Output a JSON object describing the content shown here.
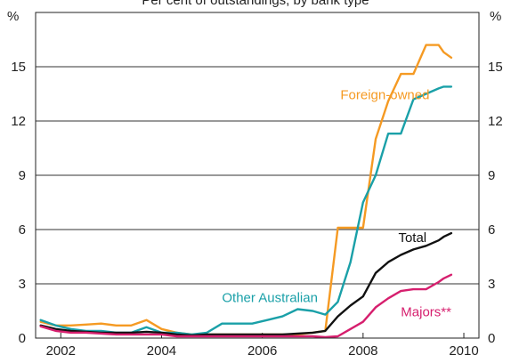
{
  "chart_data": {
    "type": "line",
    "title": "",
    "subtitle": "Per cent of outstandings, by bank type",
    "left_unit": "%",
    "right_unit": "%",
    "xlabel": "",
    "ylabel": "",
    "xlim": [
      2001.5,
      2010.3
    ],
    "ylim": [
      0,
      18
    ],
    "x_ticks": [
      2002,
      2004,
      2006,
      2008,
      2010
    ],
    "x_tick_labels": [
      "2002",
      "2004",
      "2006",
      "2008",
      "2010"
    ],
    "y_ticks": [
      0,
      3,
      6,
      9,
      12,
      15
    ],
    "y_tick_labels": [
      "0",
      "3",
      "6",
      "9",
      "12",
      "15"
    ],
    "grid": true,
    "series": [
      {
        "name": "Foreign-owned",
        "color": "#f59a23",
        "label_anchor": [
          2007.55,
          13.2
        ],
        "x": [
          2001.6,
          2001.9,
          2002.2,
          2002.5,
          2002.8,
          2003.1,
          2003.4,
          2003.7,
          2004.0,
          2004.3,
          2004.6,
          2004.9,
          2005.2,
          2005.5,
          2005.8,
          2006.1,
          2006.4,
          2006.7,
          2007.0,
          2007.25,
          2007.5,
          2007.75,
          2008.0,
          2008.25,
          2008.5,
          2008.75,
          2009.0,
          2009.25,
          2009.5,
          2009.6,
          2009.75
        ],
        "y": [
          0.9,
          0.7,
          0.7,
          0.75,
          0.8,
          0.7,
          0.7,
          1.0,
          0.5,
          0.3,
          0.2,
          0.2,
          0.2,
          0.2,
          0.2,
          0.2,
          0.2,
          0.2,
          0.3,
          0.4,
          6.1,
          6.1,
          6.1,
          11.0,
          13.1,
          14.6,
          14.6,
          16.2,
          16.2,
          15.8,
          15.5
        ]
      },
      {
        "name": "Other Australian",
        "color": "#1aa0a8",
        "label_anchor": [
          2005.2,
          2.0
        ],
        "x": [
          2001.6,
          2001.9,
          2002.2,
          2002.5,
          2002.8,
          2003.1,
          2003.4,
          2003.7,
          2004.0,
          2004.3,
          2004.6,
          2004.9,
          2005.2,
          2005.5,
          2005.8,
          2006.1,
          2006.4,
          2006.7,
          2007.0,
          2007.25,
          2007.5,
          2007.75,
          2008.0,
          2008.25,
          2008.5,
          2008.75,
          2009.0,
          2009.25,
          2009.5,
          2009.6,
          2009.75
        ],
        "y": [
          1.0,
          0.7,
          0.5,
          0.4,
          0.4,
          0.3,
          0.3,
          0.6,
          0.3,
          0.3,
          0.2,
          0.3,
          0.8,
          0.8,
          0.8,
          1.0,
          1.2,
          1.6,
          1.5,
          1.3,
          2.0,
          4.2,
          7.5,
          9.0,
          11.3,
          11.3,
          13.2,
          13.5,
          13.8,
          13.9,
          13.9
        ]
      },
      {
        "name": "Total",
        "color": "#111111",
        "label_anchor": [
          2008.7,
          5.3
        ],
        "x": [
          2001.6,
          2001.9,
          2002.2,
          2002.5,
          2002.8,
          2003.1,
          2003.4,
          2003.7,
          2004.0,
          2004.3,
          2004.6,
          2004.9,
          2005.2,
          2005.5,
          2005.8,
          2006.1,
          2006.4,
          2006.7,
          2007.0,
          2007.25,
          2007.5,
          2007.75,
          2008.0,
          2008.25,
          2008.5,
          2008.75,
          2009.0,
          2009.25,
          2009.5,
          2009.6,
          2009.75
        ],
        "y": [
          0.7,
          0.5,
          0.4,
          0.35,
          0.3,
          0.3,
          0.3,
          0.35,
          0.3,
          0.2,
          0.15,
          0.2,
          0.2,
          0.2,
          0.2,
          0.2,
          0.2,
          0.25,
          0.3,
          0.4,
          1.2,
          1.8,
          2.3,
          3.6,
          4.2,
          4.6,
          4.9,
          5.1,
          5.4,
          5.6,
          5.8
        ]
      },
      {
        "name": "Majors**",
        "color": "#d61f6e",
        "label_anchor": [
          2008.75,
          1.2
        ],
        "x": [
          2001.6,
          2001.9,
          2002.2,
          2002.5,
          2002.8,
          2003.1,
          2003.4,
          2003.7,
          2004.0,
          2004.3,
          2004.6,
          2004.9,
          2005.2,
          2005.5,
          2005.8,
          2006.1,
          2006.4,
          2006.7,
          2007.0,
          2007.25,
          2007.5,
          2007.75,
          2008.0,
          2008.25,
          2008.5,
          2008.75,
          2009.0,
          2009.25,
          2009.5,
          2009.6,
          2009.75
        ],
        "y": [
          0.65,
          0.4,
          0.3,
          0.3,
          0.25,
          0.2,
          0.2,
          0.2,
          0.2,
          0.1,
          0.1,
          0.1,
          0.1,
          0.1,
          0.1,
          0.1,
          0.1,
          0.1,
          0.1,
          0.05,
          0.1,
          0.5,
          0.9,
          1.7,
          2.2,
          2.6,
          2.7,
          2.7,
          3.1,
          3.3,
          3.5
        ]
      }
    ]
  }
}
